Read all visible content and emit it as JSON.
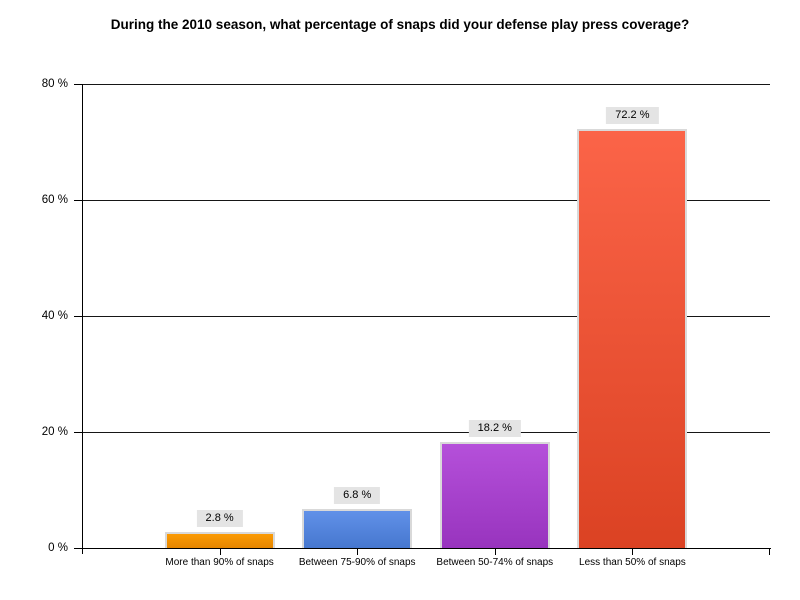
{
  "chart_data": {
    "type": "bar",
    "title": "During the 2010 season, what percentage of snaps did your defense play press coverage?",
    "categories": [
      "More than 90% of snaps",
      "Between 75-90% of snaps",
      "Between 50-74% of snaps",
      "Less than 50% of snaps"
    ],
    "values": [
      2.8,
      6.8,
      18.2,
      72.2
    ],
    "value_labels": [
      "2.8 %",
      "6.8 %",
      "18.2 %",
      "72.2 %"
    ],
    "bar_gradients": [
      {
        "top": "#FB9B04",
        "bottom": "#E68600"
      },
      {
        "top": "#6191E8",
        "bottom": "#4677CF"
      },
      {
        "top": "#B550DA",
        "bottom": "#9834BE"
      },
      {
        "top": "#FB6448",
        "bottom": "#DB4223"
      }
    ],
    "xlabel": "",
    "ylabel": "",
    "ylim": [
      0,
      80
    ],
    "yticks": [
      0,
      20,
      40,
      60,
      80
    ],
    "ytick_labels": [
      "0 %",
      "20 %",
      "40 %",
      "60 %",
      "80 %"
    ],
    "grid": true,
    "legend_position": "none",
    "colors": {
      "bar_border": "#D9D9D9",
      "value_label_bg": "#E4E4E4",
      "axis": "#000000",
      "gridline": "#161616",
      "text": "#000000",
      "background": "#FFFFFF"
    }
  }
}
